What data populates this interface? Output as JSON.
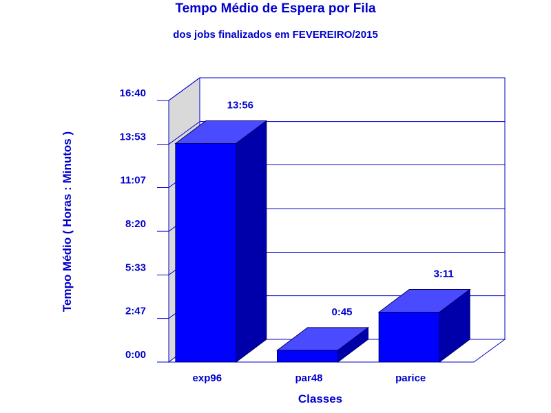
{
  "chart_data": {
    "type": "bar",
    "title": "Tempo Médio de Espera por Fila",
    "subtitle": "dos jobs finalizados em FEVEREIRO/2015",
    "xlabel": "Classes",
    "ylabel": "Tempo Médio ( Horas : Minutos )",
    "categories": [
      "exp96",
      "par48",
      "parice"
    ],
    "values": [
      13.93,
      0.75,
      3.18
    ],
    "data_labels": [
      "13:56",
      "0:45",
      "3:11"
    ],
    "y_ticks": [
      0,
      2.78,
      5.55,
      8.33,
      11.12,
      13.88,
      16.67
    ],
    "y_tick_labels": [
      "0:00",
      "2:47",
      "5:33",
      "8:20",
      "11:07",
      "13:53",
      "16:40"
    ],
    "ylim": [
      0,
      16.67
    ],
    "grid": true,
    "colors": {
      "bar_front": "#0000ff",
      "bar_top": "#4a4aff",
      "bar_side": "#0000aa",
      "axis": "#0000cc",
      "back_wall_side": "#d9d9d9"
    }
  }
}
